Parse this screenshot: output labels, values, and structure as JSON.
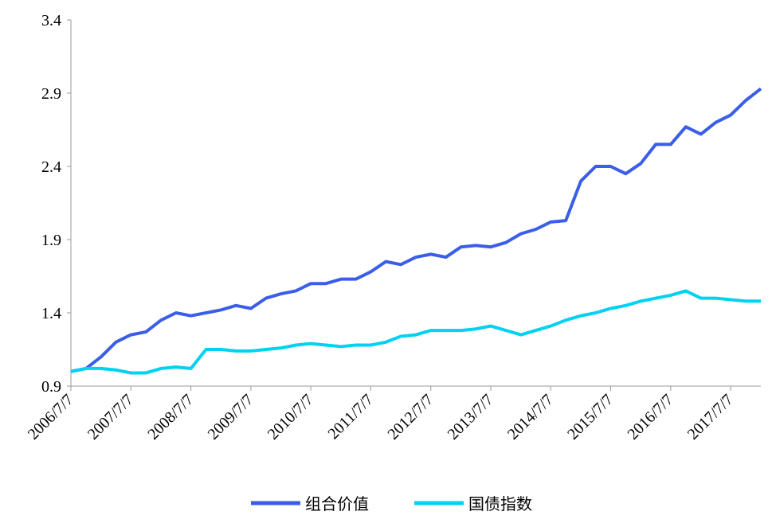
{
  "chart_data": {
    "type": "line",
    "x": [
      "2006/7/7",
      "2006/10/7",
      "2007/1/7",
      "2007/4/7",
      "2007/7/7",
      "2007/10/7",
      "2008/1/7",
      "2008/4/7",
      "2008/7/7",
      "2008/10/7",
      "2009/1/7",
      "2009/4/7",
      "2009/7/7",
      "2009/10/7",
      "2010/1/7",
      "2010/4/7",
      "2010/7/7",
      "2010/10/7",
      "2011/1/7",
      "2011/4/7",
      "2011/7/7",
      "2011/10/7",
      "2012/1/7",
      "2012/4/7",
      "2012/7/7",
      "2012/10/7",
      "2013/1/7",
      "2013/4/7",
      "2013/7/7",
      "2013/10/7",
      "2014/1/7",
      "2014/4/7",
      "2014/7/7",
      "2014/10/7",
      "2015/1/7",
      "2015/4/7",
      "2015/7/7",
      "2015/10/7",
      "2016/1/7",
      "2016/4/7",
      "2016/7/7",
      "2016/10/7",
      "2017/1/7",
      "2017/4/7",
      "2017/7/7",
      "2017/10/7",
      "2018/1/7"
    ],
    "series": [
      {
        "name": "组合价值",
        "color": "#3a5ee8",
        "values": [
          1.0,
          1.02,
          1.1,
          1.2,
          1.25,
          1.27,
          1.35,
          1.4,
          1.38,
          1.4,
          1.42,
          1.45,
          1.43,
          1.5,
          1.53,
          1.55,
          1.6,
          1.6,
          1.63,
          1.63,
          1.68,
          1.75,
          1.73,
          1.78,
          1.8,
          1.78,
          1.85,
          1.86,
          1.85,
          1.88,
          1.94,
          1.97,
          2.02,
          2.03,
          2.3,
          2.4,
          2.4,
          2.35,
          2.42,
          2.55,
          2.55,
          2.67,
          2.62,
          2.7,
          2.75,
          2.85,
          2.93
        ]
      },
      {
        "name": "国债指数",
        "color": "#00d2f0",
        "values": [
          1.0,
          1.02,
          1.02,
          1.01,
          0.99,
          0.99,
          1.02,
          1.03,
          1.02,
          1.15,
          1.15,
          1.14,
          1.14,
          1.15,
          1.16,
          1.18,
          1.19,
          1.18,
          1.17,
          1.18,
          1.18,
          1.2,
          1.24,
          1.25,
          1.28,
          1.28,
          1.28,
          1.29,
          1.31,
          1.28,
          1.25,
          1.28,
          1.31,
          1.35,
          1.38,
          1.4,
          1.43,
          1.45,
          1.48,
          1.5,
          1.52,
          1.55,
          1.5,
          1.5,
          1.49,
          1.48,
          1.48
        ]
      }
    ],
    "xlim": [
      "2006/7/7",
      "2018/1/7"
    ],
    "xticks": [
      "2006/7/7",
      "2007/7/7",
      "2008/7/7",
      "2009/7/7",
      "2010/7/7",
      "2011/7/7",
      "2012/7/7",
      "2013/7/7",
      "2014/7/7",
      "2015/7/7",
      "2016/7/7",
      "2017/7/7"
    ],
    "ylim": [
      0.9,
      3.4
    ],
    "yticks": [
      0.9,
      1.4,
      1.9,
      2.4,
      2.9,
      3.4
    ],
    "grid": false,
    "legend": "bottom"
  }
}
